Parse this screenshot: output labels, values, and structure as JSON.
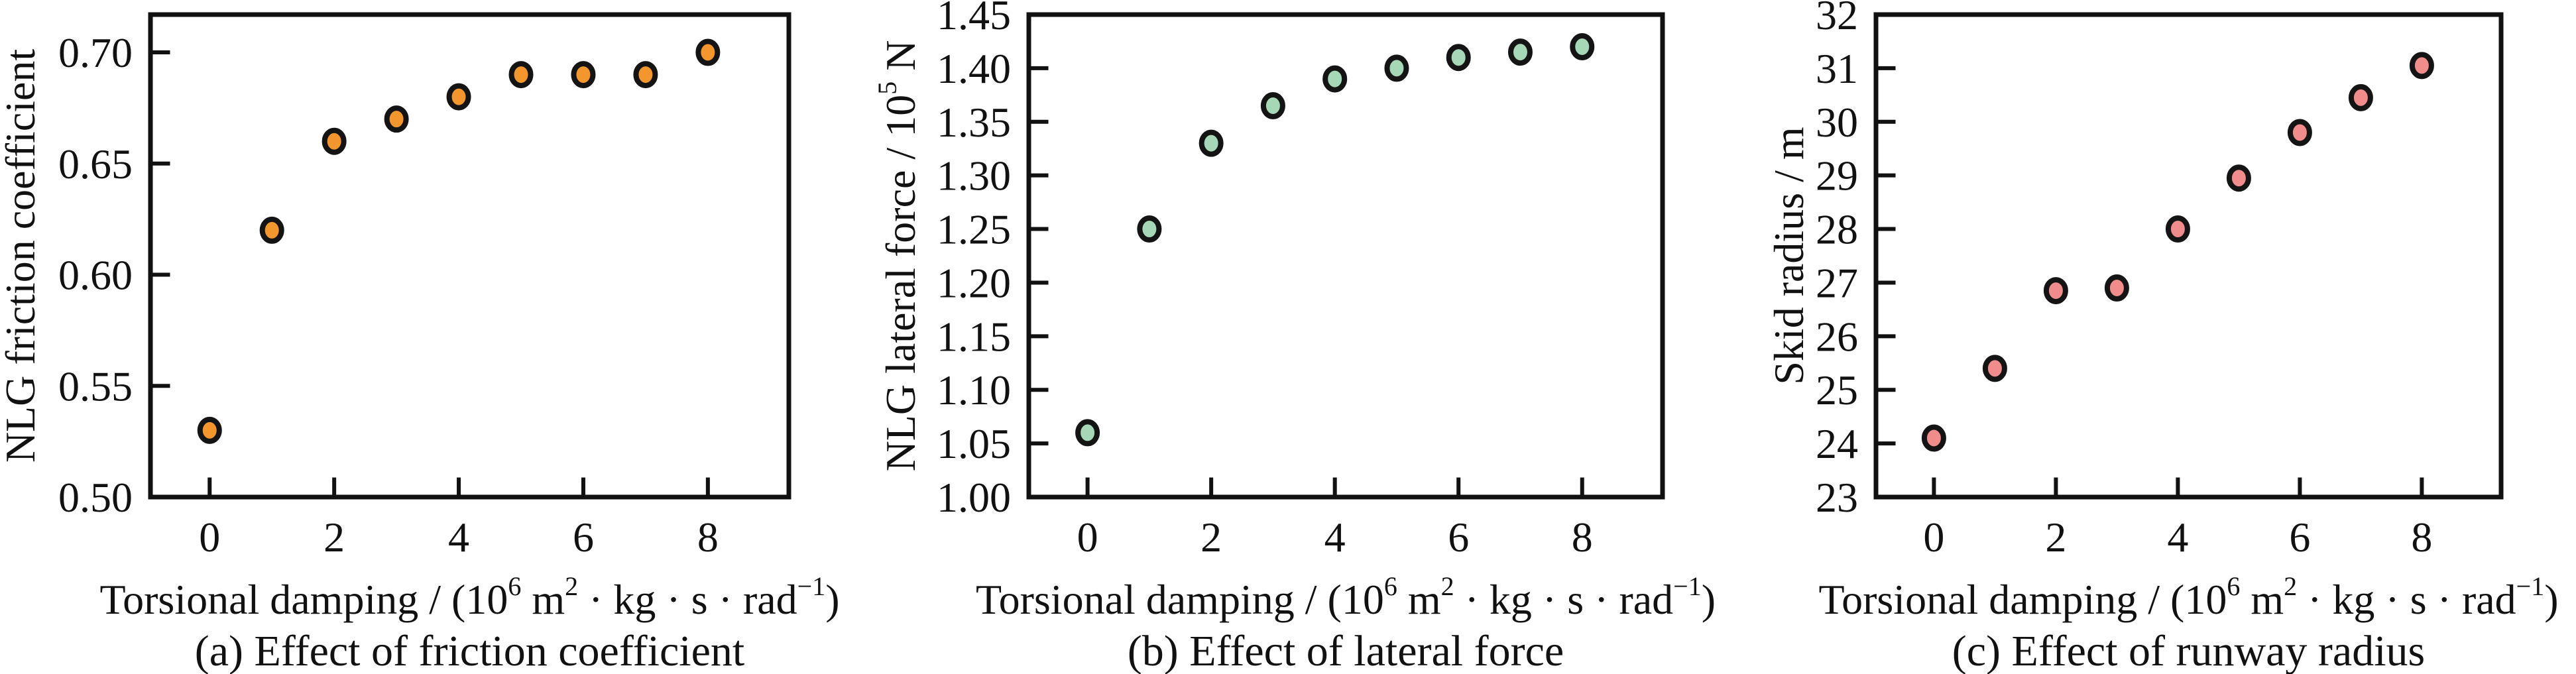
{
  "figure": {
    "background": "#FFFFFF",
    "text_color": "#111111",
    "axis_color": "#111111"
  },
  "chart_data": [
    {
      "type": "scatter",
      "panel_label": "a",
      "caption": "(a) Effect of friction coefficient",
      "ylabel": "NLG friction coefficient",
      "ylabel_segments": [
        {
          "t": "NLG friction coefficient"
        }
      ],
      "xlabel": "Torsional damping / (10^6 m^2 · kg · s · rad^-1)",
      "xlabel_segments": [
        {
          "t": "Torsional damping / (10"
        },
        {
          "t": "6",
          "sup": true
        },
        {
          "t": " m"
        },
        {
          "t": "2",
          "sup": true
        },
        {
          "t": " · kg · s · rad"
        },
        {
          "t": "−1",
          "sup": true
        },
        {
          "t": ")"
        }
      ],
      "x": [
        0,
        1,
        2,
        3,
        4,
        5,
        6,
        7,
        8
      ],
      "y": [
        0.53,
        0.62,
        0.66,
        0.67,
        0.68,
        0.69,
        0.69,
        0.69,
        0.7
      ],
      "xlim": [
        -0.95,
        9.3
      ],
      "ylim": [
        0.5,
        0.717
      ],
      "xtick_values": [
        0,
        2,
        4,
        6,
        8
      ],
      "xtick_labels": [
        "0",
        "2",
        "4",
        "6",
        "8"
      ],
      "ytick_values": [
        0.5,
        0.55,
        0.6,
        0.65,
        0.7
      ],
      "ytick_labels": [
        "0.50",
        "0.55",
        "0.60",
        "0.65",
        "0.70"
      ],
      "grid": false,
      "legend": null,
      "marker_fill": "#F2962D",
      "marker_edge": "#141414"
    },
    {
      "type": "scatter",
      "panel_label": "b",
      "caption": "(b) Effect of lateral force",
      "ylabel": "NLG lateral force / 10^5 N",
      "ylabel_segments": [
        {
          "t": "NLG lateral force / 10"
        },
        {
          "t": "5",
          "sup": true
        },
        {
          "t": " N"
        }
      ],
      "xlabel": "Torsional damping / (10^6 m^2 · kg · s · rad^-1)",
      "xlabel_segments": [
        {
          "t": "Torsional damping / (10"
        },
        {
          "t": "6",
          "sup": true
        },
        {
          "t": " m"
        },
        {
          "t": "2",
          "sup": true
        },
        {
          "t": " · kg · s · rad"
        },
        {
          "t": "−1",
          "sup": true
        },
        {
          "t": ")"
        }
      ],
      "x": [
        0,
        1,
        2,
        3,
        4,
        5,
        6,
        7,
        8
      ],
      "y": [
        1.06,
        1.25,
        1.33,
        1.365,
        1.39,
        1.4,
        1.41,
        1.415,
        1.42
      ],
      "xlim": [
        -0.95,
        9.3
      ],
      "ylim": [
        1.0,
        1.45
      ],
      "xtick_values": [
        0,
        2,
        4,
        6,
        8
      ],
      "xtick_labels": [
        "0",
        "2",
        "4",
        "6",
        "8"
      ],
      "ytick_values": [
        1.0,
        1.05,
        1.1,
        1.15,
        1.2,
        1.25,
        1.3,
        1.35,
        1.4,
        1.45
      ],
      "ytick_labels": [
        "1.00",
        "1.05",
        "1.10",
        "1.15",
        "1.20",
        "1.25",
        "1.30",
        "1.35",
        "1.40",
        "1.45"
      ],
      "grid": false,
      "legend": null,
      "marker_fill": "#A6D7B7",
      "marker_edge": "#141414"
    },
    {
      "type": "scatter",
      "panel_label": "c",
      "caption": "(c) Effect of runway radius",
      "ylabel": "Skid radius / m",
      "ylabel_segments": [
        {
          "t": "Skid radius / m"
        }
      ],
      "xlabel": "Torsional damping / (10^6 m^2 · kg · s · rad^-1)",
      "xlabel_segments": [
        {
          "t": "Torsional damping / (10"
        },
        {
          "t": "6",
          "sup": true
        },
        {
          "t": " m"
        },
        {
          "t": "2",
          "sup": true
        },
        {
          "t": " · kg · s · rad"
        },
        {
          "t": "−1",
          "sup": true
        },
        {
          "t": ")"
        }
      ],
      "x": [
        0,
        1,
        2,
        3,
        4,
        5,
        6,
        7,
        8
      ],
      "y": [
        24.1,
        25.4,
        26.85,
        26.9,
        28.0,
        28.95,
        29.8,
        30.45,
        31.05
      ],
      "xlim": [
        -0.95,
        9.3
      ],
      "ylim": [
        23,
        32
      ],
      "xtick_values": [
        0,
        2,
        4,
        6,
        8
      ],
      "xtick_labels": [
        "0",
        "2",
        "4",
        "6",
        "8"
      ],
      "ytick_values": [
        23,
        24,
        25,
        26,
        27,
        28,
        29,
        30,
        31,
        32
      ],
      "ytick_labels": [
        "23",
        "24",
        "25",
        "26",
        "27",
        "28",
        "29",
        "30",
        "31",
        "32"
      ],
      "grid": false,
      "legend": null,
      "marker_fill": "#F08C8C",
      "marker_edge": "#141414"
    }
  ]
}
